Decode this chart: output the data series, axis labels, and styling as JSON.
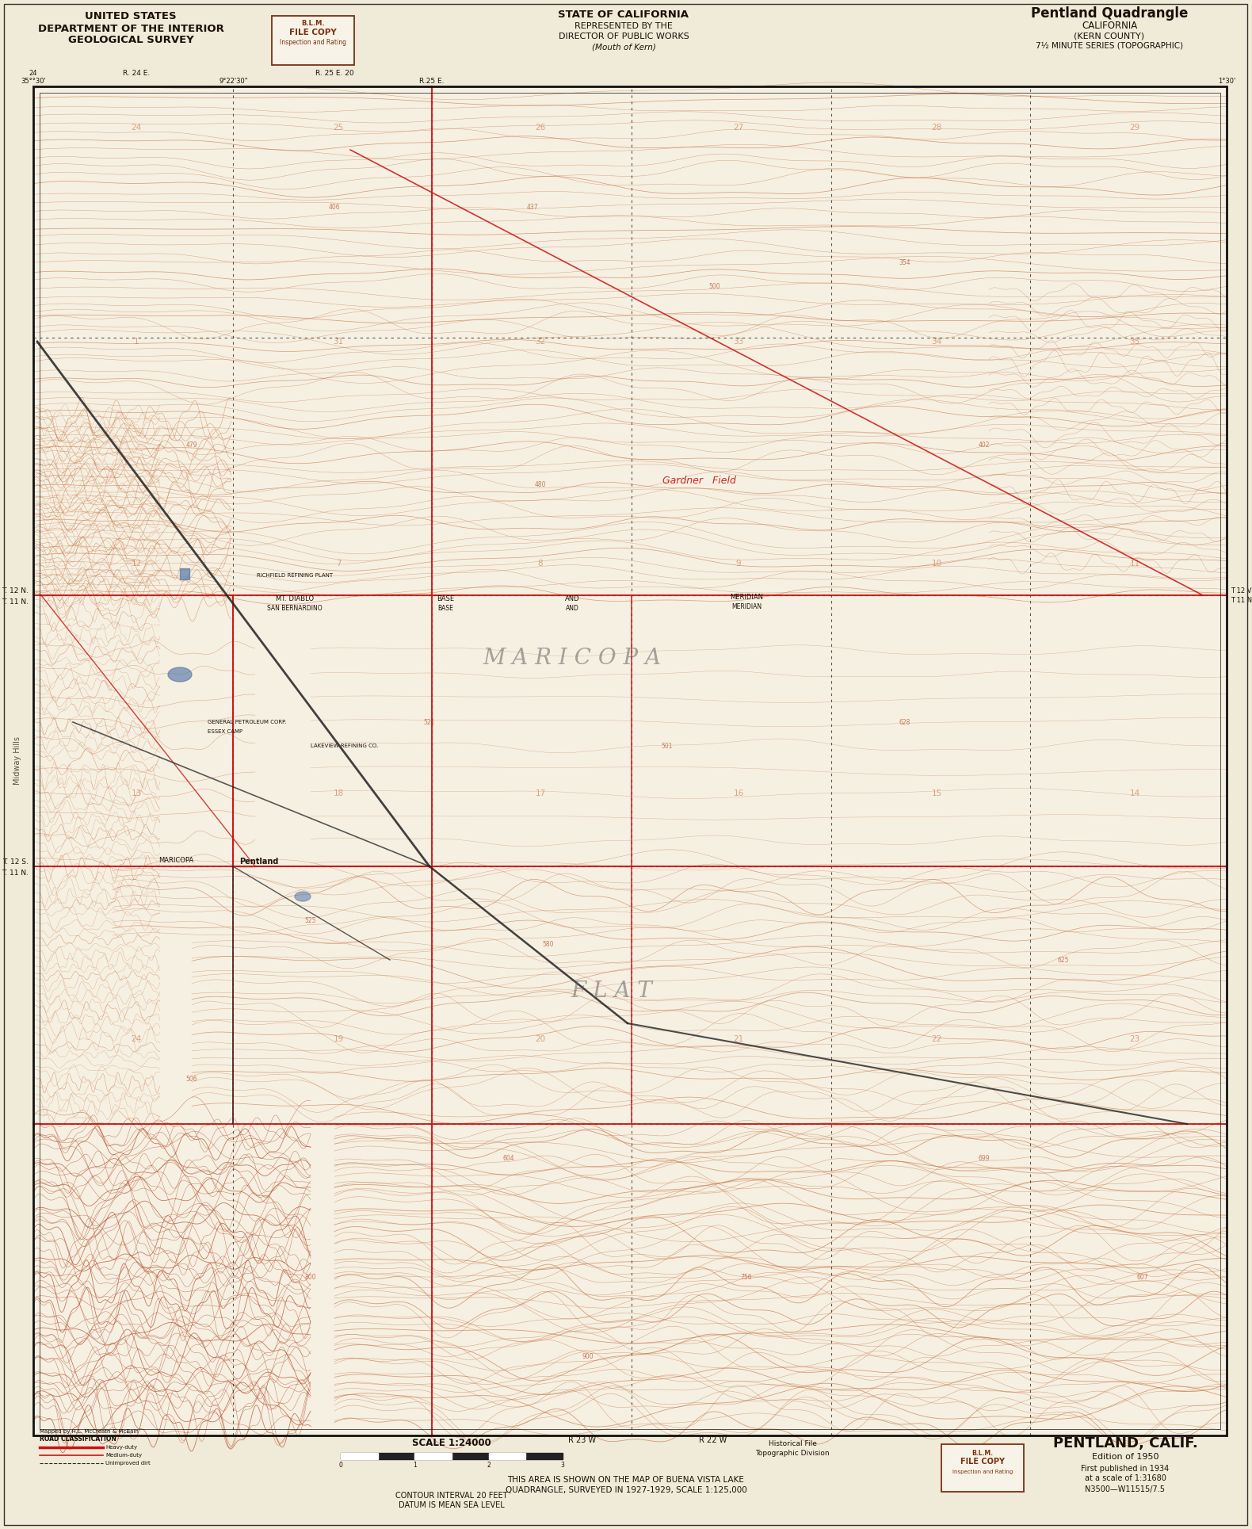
{
  "bg_color": "#f0ead8",
  "map_bg": "#f5f0e2",
  "contour_color": "#c87040",
  "contour_color2": "#b85030",
  "red_line_color": "#cc1111",
  "black_line_color": "#222222",
  "blue_color": "#5577aa",
  "text_dark": "#1a1008",
  "text_red": "#cc1111",
  "stamp_color": "#7a3010",
  "title_quadrangle": "Pentland Quadrangle",
  "title_state": "CALIFORNIA",
  "title_county": "(KERN COUNTY)",
  "title_series": "7½ MINUTE SERIES (TOPOGRAPHIC)",
  "header_left1": "UNITED STATES",
  "header_left2": "DEPARTMENT OF THE INTERIOR",
  "header_left3": "GEOLOGICAL SURVEY",
  "header_center1": "STATE OF CALIFORNIA",
  "header_center2": "REPRESENTED BY THE",
  "header_center3": "DIRECTOR OF PUBLIC WORKS",
  "header_center4": "(Mouth of Kern)",
  "bottom_title": "PENTLAND, CALIF.",
  "bottom_ed": "Edition of 1950",
  "bottom_pub": "First published in 1934",
  "bottom_scale_note": "at a scale of 1:31680",
  "bottom_grid": "N3500—W11515/7.5",
  "notice1": "THIS AREA IS SHOWN ON THE MAP OF BUENA VISTA LAKE",
  "notice2": "QUADRANGLE, SURVEYED IN 1927-1929, SCALE 1:125,000",
  "scale_label": "SCALE 1:24000",
  "ci_text": "CONTOUR INTERVAL 20 FEET",
  "datum_text": "DATUM IS MEAN SEA LEVEL",
  "fig_width": 15.79,
  "fig_height": 19.29,
  "dpi": 100
}
